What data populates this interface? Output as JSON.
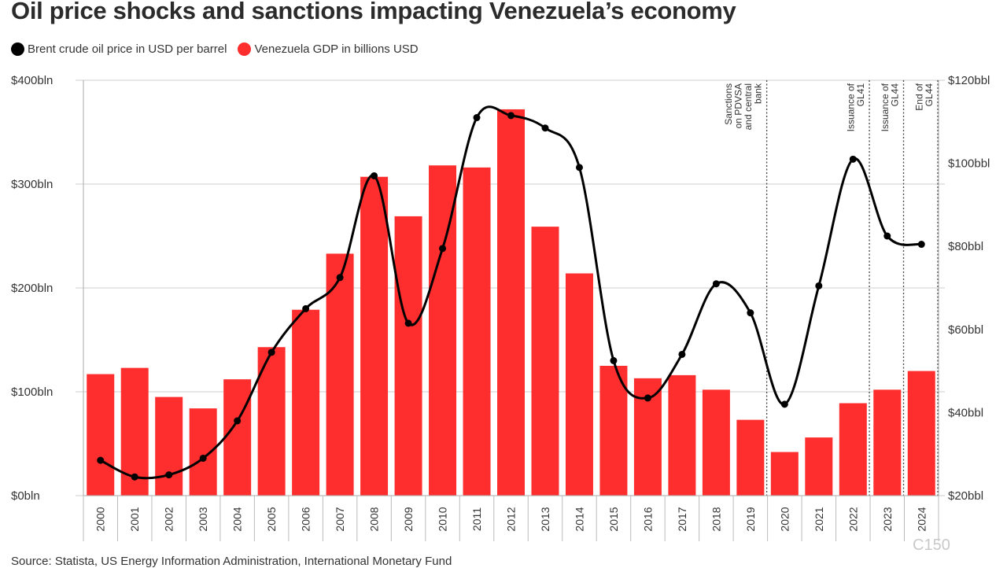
{
  "title": "Oil price shocks and sanctions impacting Venezuela’s economy",
  "legend": {
    "oil_label": "Brent crude oil price in USD per barrel",
    "gdp_label": "Venezuela GDP in billions USD"
  },
  "source": "Source: Statista, US Energy Information Administration, International Monetary Fund",
  "watermark": "C150",
  "colors": {
    "bar": "#ff2e2e",
    "line": "#000000",
    "grid": "#cccccc",
    "annotation": "#444444"
  },
  "chart_data": {
    "type": "bar",
    "title": "Oil price shocks and sanctions impacting Venezuela’s economy",
    "categories": [
      "2000",
      "2001",
      "2002",
      "2003",
      "2004",
      "2005",
      "2006",
      "2007",
      "2008",
      "2009",
      "2010",
      "2011",
      "2012",
      "2013",
      "2014",
      "2015",
      "2016",
      "2017",
      "2018",
      "2019",
      "2020",
      "2021",
      "2022",
      "2023",
      "2024"
    ],
    "series": [
      {
        "name": "Venezuela GDP in billions USD",
        "type": "bar",
        "axis": "left",
        "values": [
          117,
          123,
          95,
          84,
          112,
          143,
          179,
          233,
          307,
          269,
          318,
          316,
          372,
          259,
          214,
          125,
          113,
          116,
          102,
          73,
          42,
          56,
          89,
          102,
          120
        ]
      },
      {
        "name": "Brent crude oil price in USD per barrel",
        "type": "line",
        "axis": "right",
        "values": [
          28.5,
          24.5,
          25,
          29,
          38,
          54.5,
          65,
          72.5,
          97,
          61.5,
          79.5,
          111,
          111.5,
          108.5,
          99,
          52.5,
          43.5,
          54,
          71,
          64,
          42,
          70.5,
          101,
          82.5,
          80.5
        ]
      }
    ],
    "y_left": {
      "ylim": [
        0,
        400
      ],
      "ticks": [
        0,
        100,
        200,
        300,
        400
      ],
      "tick_labels": [
        "$0bln",
        "$100bln",
        "$200bln",
        "$300bln",
        "$400bln"
      ]
    },
    "y_right": {
      "ylim": [
        20,
        120
      ],
      "ticks": [
        20,
        40,
        60,
        80,
        100,
        120
      ],
      "tick_labels": [
        "$20bbl",
        "$40bbl",
        "$60bbl",
        "$80bbl",
        "$100bbl",
        "$120bbl"
      ]
    },
    "annotations": [
      {
        "year": "2019",
        "lines": [
          "Sanctions",
          "on PDVSA",
          "and central",
          "bank"
        ]
      },
      {
        "year": "2022",
        "lines": [
          "Issuance of",
          "GL41"
        ]
      },
      {
        "year": "2023",
        "lines": [
          "Issuance of",
          "GL44"
        ]
      },
      {
        "year": "2024",
        "lines": [
          "End of",
          "GL44"
        ]
      }
    ],
    "grid": true,
    "legend_position": "top-left"
  }
}
